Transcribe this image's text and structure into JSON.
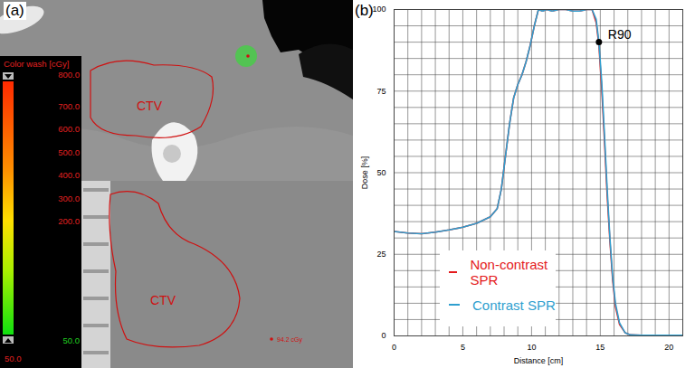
{
  "image_panel": {
    "label": "(a)",
    "roi_labels": [
      "CTV",
      "CTV"
    ],
    "dose_point_label": "94.2 cGy",
    "colorbar": {
      "title": "Color wash [cGy]",
      "tick_labels": [
        "800.0",
        "700.0",
        "600.0",
        "500.0",
        "400.0",
        "300.0",
        "200.0"
      ],
      "bottom_labels": [
        "50.0",
        "50.0"
      ]
    }
  },
  "chart_data": {
    "type": "line",
    "panel_label": "(b)",
    "x_label": "Distance [cm]",
    "y_label": "Dose [%]",
    "x": [
      0,
      1,
      2,
      3,
      4,
      5,
      6,
      7,
      7.5,
      7.8,
      8.1,
      8.4,
      8.7,
      9.0,
      9.3,
      9.6,
      9.9,
      10.2,
      10.5,
      10.8,
      11.1,
      11.5,
      12,
      12.5,
      13,
      13.5,
      14,
      14.4,
      14.7,
      14.9,
      15.1,
      15.3,
      15.5,
      15.7,
      15.9,
      16.1,
      16.4,
      16.8,
      17.2,
      18,
      19,
      20,
      21
    ],
    "series": [
      {
        "name": "Non-contrast SPR",
        "color": "#e41a1c",
        "values": [
          32,
          31.5,
          31.3,
          31.8,
          32.5,
          33.3,
          34.5,
          36.5,
          39,
          45,
          55,
          65,
          73,
          77,
          80,
          84,
          89,
          95,
          100,
          99.5,
          100,
          99.5,
          100,
          100,
          99.5,
          99.5,
          100,
          100,
          96,
          89,
          76,
          60,
          43,
          29,
          17,
          9,
          3.5,
          1,
          0.3,
          0.2,
          0.2,
          0.2,
          0.2
        ]
      },
      {
        "name": "Contrast SPR",
        "color": "#2f9fcf",
        "values": [
          32,
          31.5,
          31.3,
          31.8,
          32.5,
          33.3,
          34.5,
          36.5,
          39,
          45,
          55,
          65,
          73,
          77,
          80,
          84,
          89,
          95,
          100,
          99.5,
          100,
          99.5,
          100,
          100,
          99.5,
          99.5,
          100,
          100,
          97,
          90,
          78,
          62,
          45,
          30,
          18,
          10,
          4,
          1,
          0.3,
          0.2,
          0.2,
          0.2,
          0.2
        ]
      }
    ],
    "xlim": [
      0,
      21
    ],
    "ylim": [
      0,
      100
    ],
    "xticks": [
      0,
      5,
      10,
      15,
      20
    ],
    "yticks": [
      0,
      25,
      50,
      75,
      100
    ],
    "grid": true,
    "legend": "bottom",
    "annotations": [
      {
        "text": "R90",
        "x": 14.9,
        "y": 90
      }
    ]
  }
}
